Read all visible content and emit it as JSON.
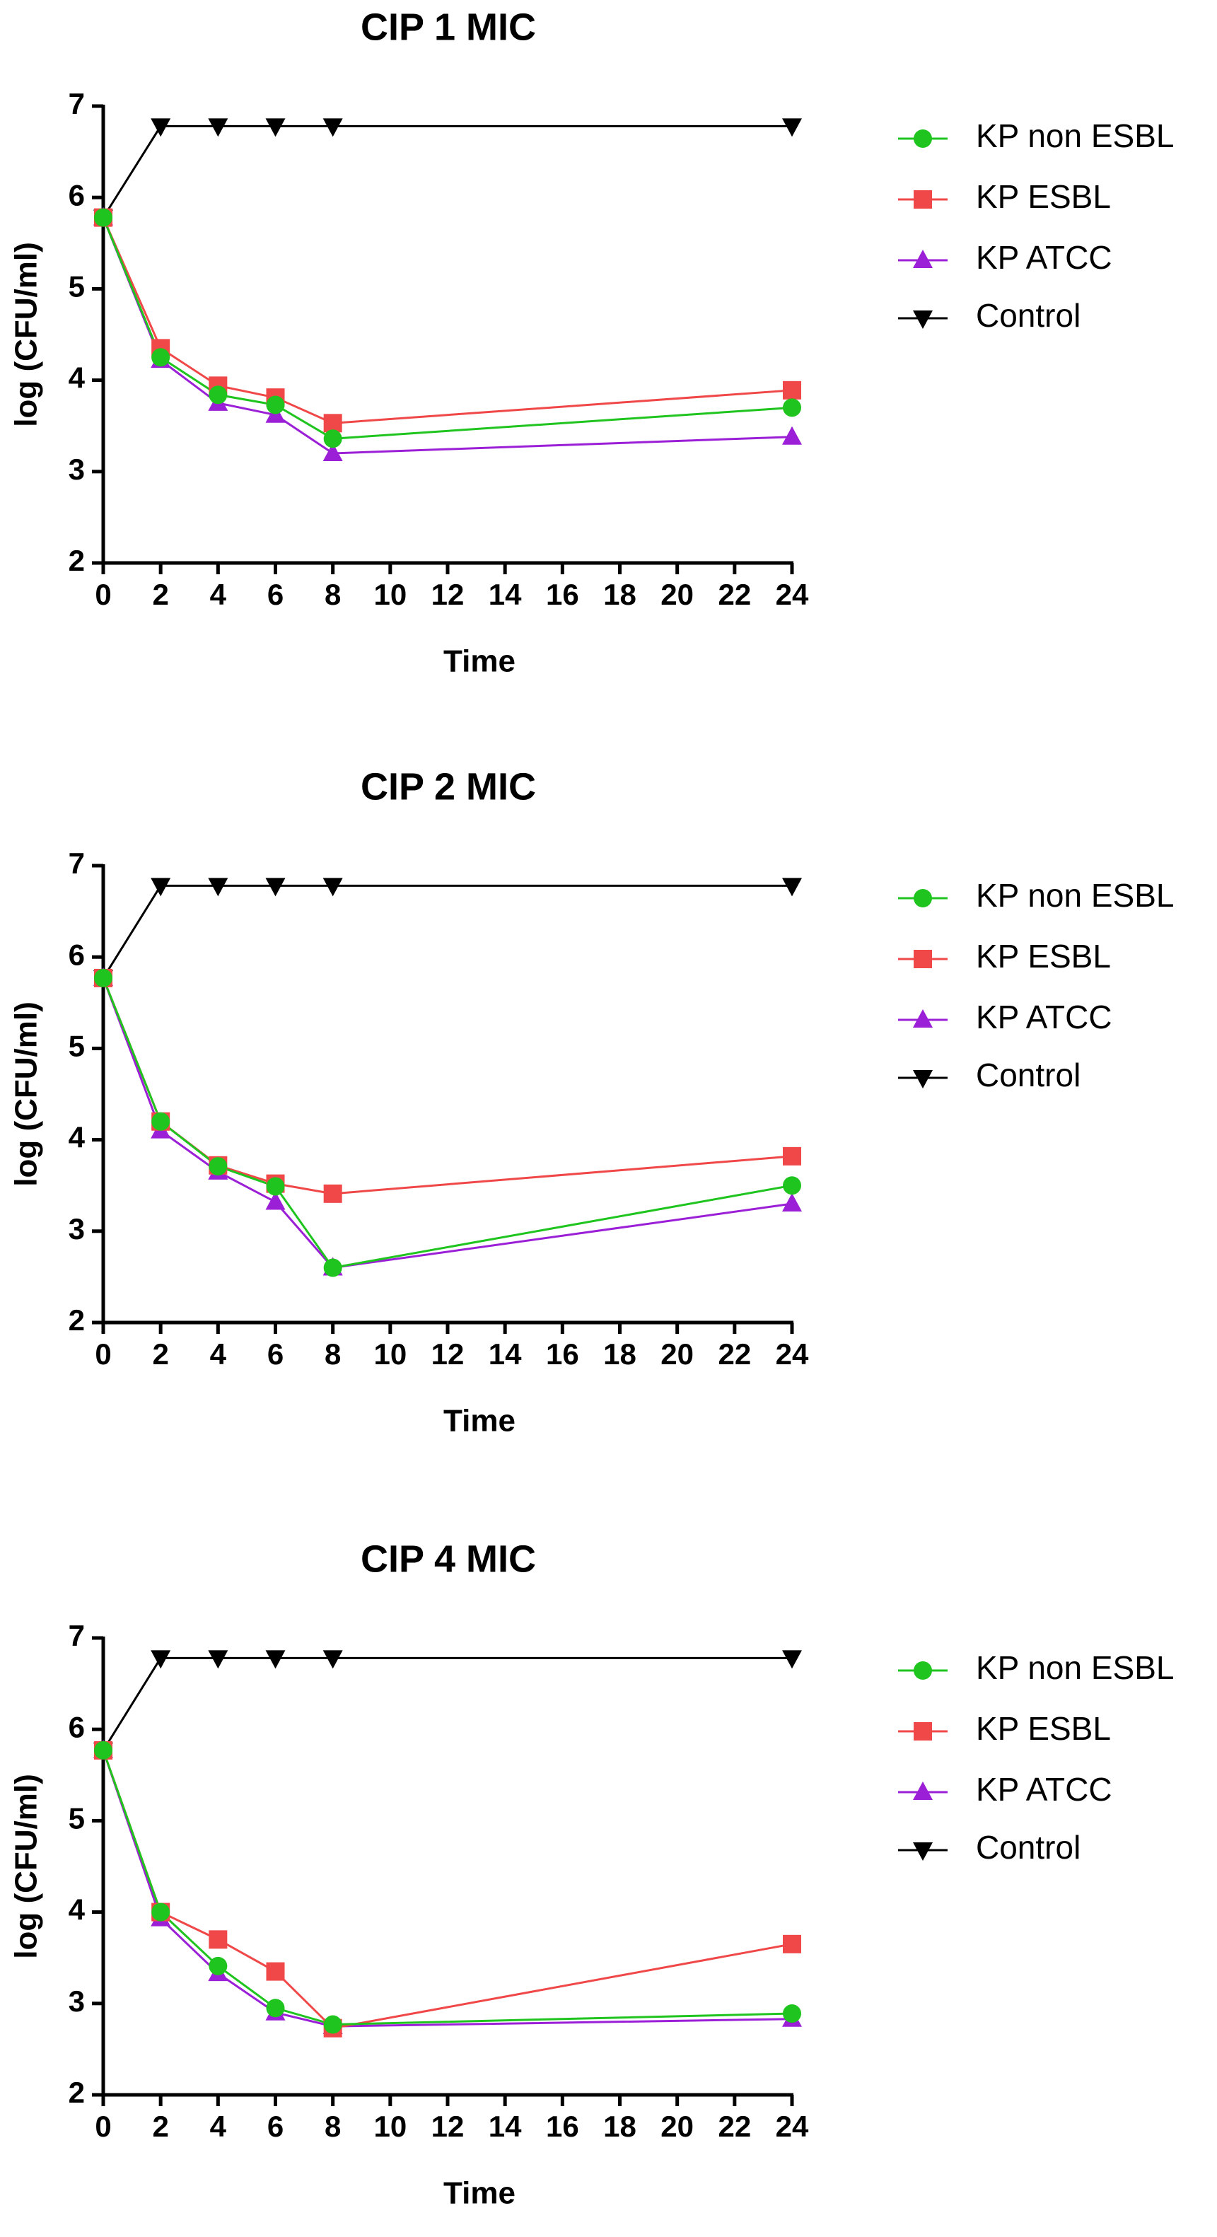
{
  "chart_data": [
    {
      "type": "line",
      "title": "CIP 1 MIC",
      "x_label": "Time",
      "y_label": "log (CFU/ml)",
      "x": [
        0,
        2,
        4,
        6,
        8,
        24
      ],
      "xlim": [
        0,
        24
      ],
      "xticks": [
        0,
        2,
        4,
        6,
        8,
        10,
        12,
        14,
        16,
        18,
        20,
        22,
        24
      ],
      "ylim": [
        2,
        7
      ],
      "yticks": [
        2,
        3,
        4,
        5,
        6,
        7
      ],
      "legend": "right",
      "series": [
        {
          "name": "KP non ESBL",
          "color": "#1fc41f",
          "marker": "circle",
          "values": [
            5.78,
            4.25,
            3.84,
            3.73,
            3.36,
            3.7
          ]
        },
        {
          "name": "KP ESBL",
          "color": "#f04848",
          "marker": "square",
          "values": [
            5.78,
            4.35,
            3.94,
            3.81,
            3.53,
            3.89
          ]
        },
        {
          "name": "KP ATCC",
          "color": "#9b1fd6",
          "marker": "triangle-up",
          "values": [
            5.78,
            4.22,
            3.75,
            3.62,
            3.2,
            3.38
          ]
        },
        {
          "name": "Control",
          "color": "#000000",
          "marker": "triangle-down",
          "values": [
            5.78,
            6.78,
            6.78,
            6.78,
            6.78,
            6.78
          ]
        }
      ]
    },
    {
      "type": "line",
      "title": "CIP 2 MIC",
      "x_label": "Time",
      "y_label": "log (CFU/ml)",
      "x": [
        0,
        2,
        4,
        6,
        8,
        24
      ],
      "xlim": [
        0,
        24
      ],
      "xticks": [
        0,
        2,
        4,
        6,
        8,
        10,
        12,
        14,
        16,
        18,
        20,
        22,
        24
      ],
      "ylim": [
        2,
        7
      ],
      "yticks": [
        2,
        3,
        4,
        5,
        6,
        7
      ],
      "legend": "right",
      "series": [
        {
          "name": "KP non ESBL",
          "color": "#1fc41f",
          "marker": "circle",
          "values": [
            5.77,
            4.2,
            3.71,
            3.49,
            2.6,
            3.5
          ]
        },
        {
          "name": "KP ESBL",
          "color": "#f04848",
          "marker": "square",
          "values": [
            5.77,
            4.2,
            3.72,
            3.52,
            3.41,
            3.82
          ]
        },
        {
          "name": "KP ATCC",
          "color": "#9b1fd6",
          "marker": "triangle-up",
          "values": [
            5.77,
            4.1,
            3.65,
            3.32,
            2.6,
            3.3
          ]
        },
        {
          "name": "Control",
          "color": "#000000",
          "marker": "triangle-down",
          "values": [
            5.77,
            6.78,
            6.78,
            6.78,
            6.78,
            6.78
          ]
        }
      ]
    },
    {
      "type": "line",
      "title": "CIP 4 MIC",
      "x_label": "Time",
      "y_label": "log (CFU/ml)",
      "x": [
        0,
        2,
        4,
        6,
        8,
        24
      ],
      "xlim": [
        0,
        24
      ],
      "xticks": [
        0,
        2,
        4,
        6,
        8,
        10,
        12,
        14,
        16,
        18,
        20,
        22,
        24
      ],
      "ylim": [
        2,
        7
      ],
      "yticks": [
        2,
        3,
        4,
        5,
        6,
        7
      ],
      "legend": "right",
      "series": [
        {
          "name": "KP non ESBL",
          "color": "#1fc41f",
          "marker": "circle",
          "values": [
            5.77,
            4.0,
            3.41,
            2.95,
            2.77,
            2.89
          ]
        },
        {
          "name": "KP ESBL",
          "color": "#f04848",
          "marker": "square",
          "values": [
            5.77,
            4.0,
            3.7,
            3.35,
            2.73,
            3.65
          ]
        },
        {
          "name": "KP ATCC",
          "color": "#9b1fd6",
          "marker": "triangle-up",
          "values": [
            5.77,
            3.93,
            3.33,
            2.9,
            2.75,
            2.83
          ]
        },
        {
          "name": "Control",
          "color": "#000000",
          "marker": "triangle-down",
          "values": [
            5.77,
            6.78,
            6.78,
            6.78,
            6.78,
            6.78
          ]
        }
      ]
    }
  ]
}
